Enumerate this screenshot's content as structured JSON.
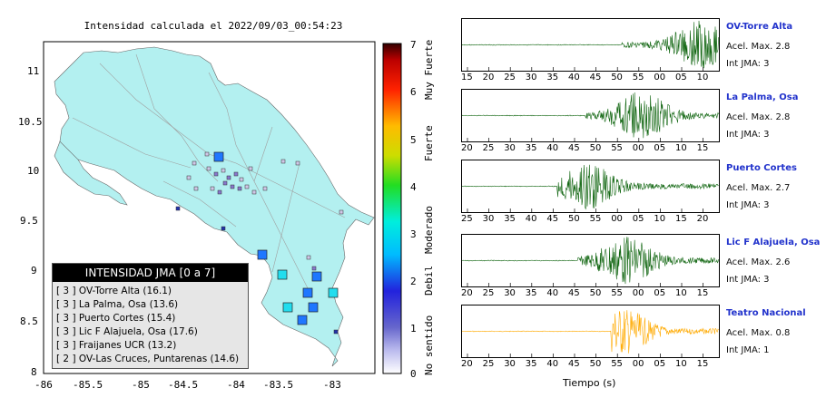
{
  "map": {
    "title": "Intensidad calculada el 2022/09/03_00:54:23",
    "y_ticks": [
      "11",
      "10.5",
      "10",
      "9.5",
      "9",
      "8.5",
      "8"
    ],
    "x_ticks": [
      "-86",
      "-85.5",
      "-85",
      "-84.5",
      "-84",
      "-83.5",
      "-83"
    ],
    "land_color": "#b3f0f0"
  },
  "legend": {
    "title": "INTENSIDAD JMA [0 a 7]",
    "rows": [
      "[ 3 ]  OV-Torre Alta (16.1)",
      "[ 3 ]  La Palma, Osa (13.6)",
      "[ 3 ]  Puerto Cortes (15.4)",
      "[ 3 ]  Lic F Alajuela, Osa (17.6)",
      "[ 3 ]  Fraijanes UCR (13.2)",
      "[ 2 ]  OV-Las Cruces, Puntarenas (14.6)"
    ]
  },
  "colorbar": {
    "ticks": [
      "7",
      "6",
      "5",
      "4",
      "3",
      "2",
      "1",
      "0"
    ],
    "labels": [
      "Muy Fuerte",
      "Fuerte",
      "Moderado",
      "Debil",
      "No sentido"
    ]
  },
  "traces": [
    {
      "name": "OV-Torre Alta",
      "accel": "Acel. Max. 2.8",
      "jma": "Int JMA: 3",
      "color": "#116611",
      "xticks": [
        "15",
        "20",
        "25",
        "30",
        "35",
        "40",
        "45",
        "50",
        "55",
        "00",
        "05",
        "10"
      ],
      "start": 0.62,
      "peak": 0.93
    },
    {
      "name": "La Palma, Osa",
      "accel": "Acel. Max. 2.8",
      "jma": "Int JMA: 3",
      "color": "#116611",
      "xticks": [
        "20",
        "25",
        "30",
        "35",
        "40",
        "45",
        "50",
        "55",
        "00",
        "05",
        "10",
        "15"
      ],
      "start": 0.48,
      "peak": 0.7
    },
    {
      "name": "Puerto Cortes",
      "accel": "Acel. Max. 2.7",
      "jma": "Int JMA: 3",
      "color": "#116611",
      "xticks": [
        "25",
        "30",
        "35",
        "40",
        "45",
        "50",
        "55",
        "00",
        "05",
        "10",
        "15",
        "20"
      ],
      "start": 0.37,
      "peak": 0.48
    },
    {
      "name": "Lic F Alajuela, Osa",
      "accel": "Acel. Max. 2.6",
      "jma": "Int JMA: 3",
      "color": "#116611",
      "xticks": [
        "20",
        "25",
        "30",
        "35",
        "40",
        "45",
        "50",
        "55",
        "00",
        "05",
        "10",
        "15"
      ],
      "start": 0.45,
      "peak": 0.64
    },
    {
      "name": "Teatro Nacional",
      "accel": "Acel. Max. 0.8",
      "jma": "Int JMA: 1",
      "color": "#ffaa00",
      "xticks": [
        "20",
        "25",
        "30",
        "35",
        "40",
        "45",
        "50",
        "55",
        "00",
        "05",
        "10",
        "15"
      ],
      "start": 0.58,
      "peak": 0.62
    }
  ],
  "xlabel": "Tiempo (s)"
}
